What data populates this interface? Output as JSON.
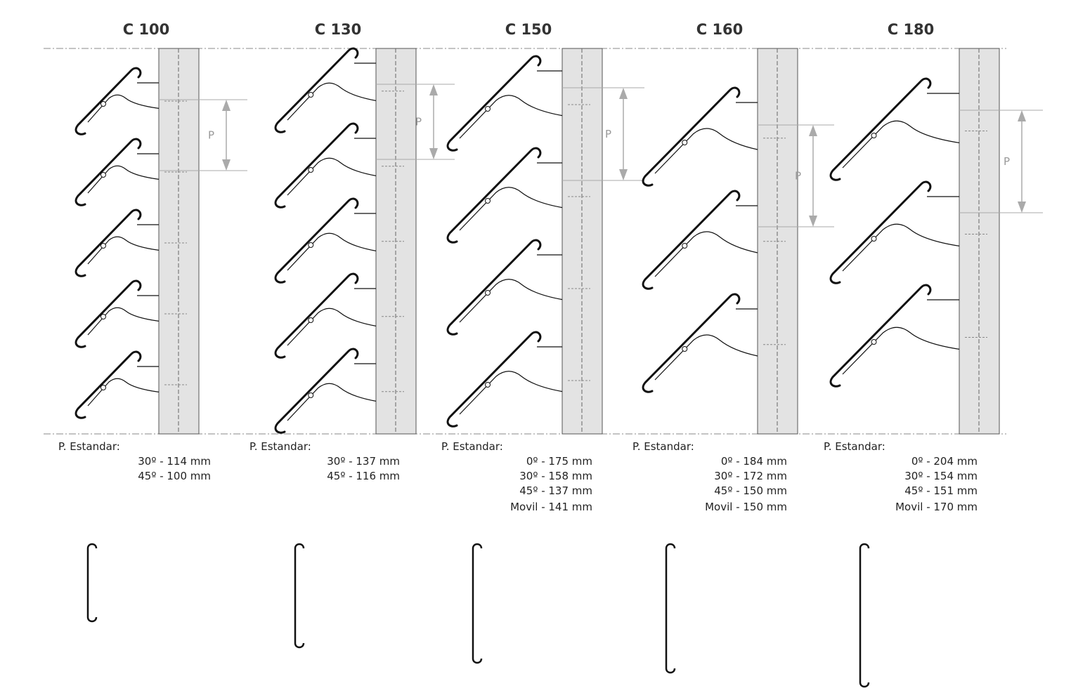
{
  "columns": [
    {
      "title": "C 100",
      "p_label": "P",
      "caption": "P. Estandar:",
      "specs": [
        "30º - 114 mm",
        "45º - 100 mm"
      ]
    },
    {
      "title": "C 130",
      "p_label": "P",
      "caption": "P. Estandar:",
      "specs": [
        "30º - 137 mm",
        "45º - 116 mm"
      ]
    },
    {
      "title": "C 150",
      "p_label": "P",
      "caption": "P. Estandar:",
      "specs": [
        "0º - 175 mm",
        "30º - 158 mm",
        "45º - 137 mm",
        "Movil - 141 mm"
      ]
    },
    {
      "title": "C 160",
      "p_label": "P",
      "caption": "P. Estandar:",
      "specs": [
        "0º - 184 mm",
        "30º - 172 mm",
        "45º - 150 mm",
        "Movil - 150 mm"
      ]
    },
    {
      "title": "C 180",
      "p_label": "P",
      "caption": "P. Estandar:",
      "specs": [
        "0º - 204 mm",
        "30º - 154 mm",
        "45º - 151 mm",
        "Movil - 170 mm"
      ]
    }
  ]
}
